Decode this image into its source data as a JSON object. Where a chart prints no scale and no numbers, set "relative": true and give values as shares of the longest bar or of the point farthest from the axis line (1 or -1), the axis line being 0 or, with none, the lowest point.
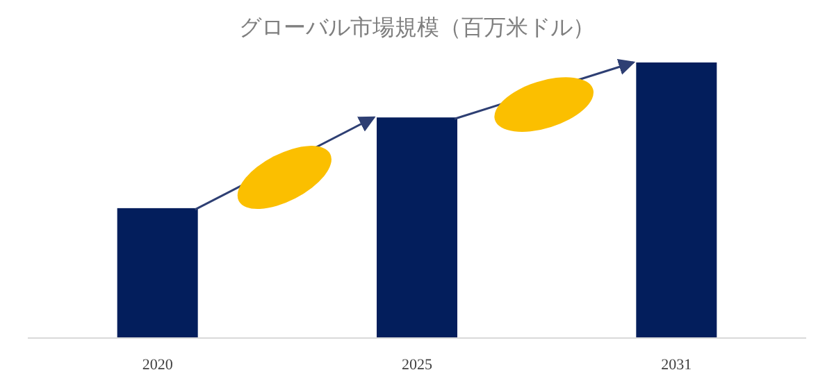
{
  "chart_data": {
    "type": "bar",
    "title": "グローバル市場規模（百万米ドル）",
    "categories": [
      "2020",
      "2025",
      "2031"
    ],
    "values": [
      0.47,
      0.8,
      1
    ],
    "relative": true,
    "color": "#031e5c"
  }
}
